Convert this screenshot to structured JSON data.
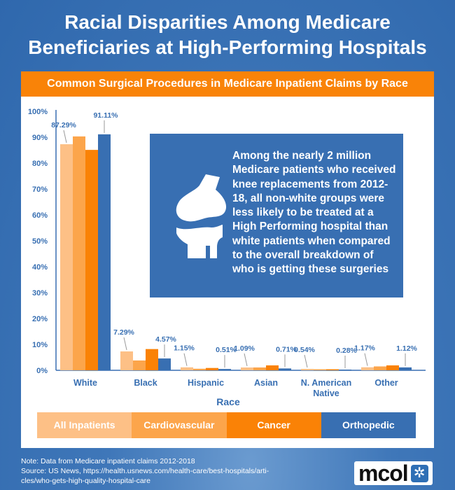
{
  "header": {
    "title_line1": "Racial Disparities Among Medicare",
    "title_line2": "Beneficiaries at High-Performing Hospitals",
    "subtitle": "Common Surgical Procedures  in Medicare Inpatient Claims by Race"
  },
  "callout": {
    "icon": "knee-joint-icon",
    "text": "Among the nearly 2 million Medicare patients who received knee replacements from 2012-18, all non-white groups were less likely to be treated at a High Performing hospital than white patients when compared to the overall breakdown of who is getting these surgeries"
  },
  "legend": [
    {
      "label": "All Inpatients",
      "color": "#fdc086"
    },
    {
      "label": "Cardiovascular",
      "color": "#fca54b"
    },
    {
      "label": "Cancer",
      "color": "#fa8206"
    },
    {
      "label": "Orthopedic",
      "color": "#386fb2"
    }
  ],
  "footer": {
    "note": "Note: Data from Medicare inpatient claims 2012-2018",
    "source_line1": "Source: US News, https://health.usnews.com/health-care/best-hospitals/arti-",
    "source_line2": "cles/who-gets-high-quality-hospital-care",
    "logo_text": "mcol",
    "logo_icon": "asterisk-flower-icon"
  },
  "chart_data": {
    "type": "bar",
    "title": "Common Surgical Procedures  in Medicare Inpatient Claims by Race",
    "xlabel": "Race",
    "ylabel": "",
    "ylim": [
      0,
      100
    ],
    "yticks": [
      "0%",
      "10%",
      "20%",
      "30%",
      "40%",
      "50%",
      "60%",
      "70%",
      "80%",
      "90%",
      "100%"
    ],
    "categories": [
      "White",
      "Black",
      "Hispanic",
      "Asian",
      "N. American Native",
      "Other"
    ],
    "category_lines": [
      [
        "White"
      ],
      [
        "Black"
      ],
      [
        "Hispanic"
      ],
      [
        "Asian"
      ],
      [
        "N. American",
        "Native"
      ],
      [
        "Other"
      ]
    ],
    "grid": false,
    "legend_position": "bottom",
    "series": [
      {
        "name": "All Inpatients",
        "color": "#fdc086",
        "values": [
          87.29,
          7.29,
          1.15,
          1.09,
          0.54,
          1.17
        ],
        "labeled": true
      },
      {
        "name": "Cardiovascular",
        "color": "#fca54b",
        "values": [
          90.3,
          3.8,
          0.6,
          1.1,
          0.4,
          1.5
        ],
        "labeled": false
      },
      {
        "name": "Cancer",
        "color": "#fa8206",
        "values": [
          85.1,
          8.2,
          0.9,
          1.9,
          0.4,
          1.9
        ],
        "labeled": false
      },
      {
        "name": "Orthopedic",
        "color": "#386fb2",
        "values": [
          91.11,
          4.57,
          0.51,
          0.71,
          0.28,
          1.12
        ],
        "labeled": true
      }
    ],
    "annotations": [
      "87.29%",
      "91.11%",
      "7.29%",
      "4.57%",
      "1.15%",
      "0.51%",
      "1.09%",
      "0.71%",
      "0.54%",
      "0.28%",
      "1.17%",
      "1.12%"
    ]
  }
}
